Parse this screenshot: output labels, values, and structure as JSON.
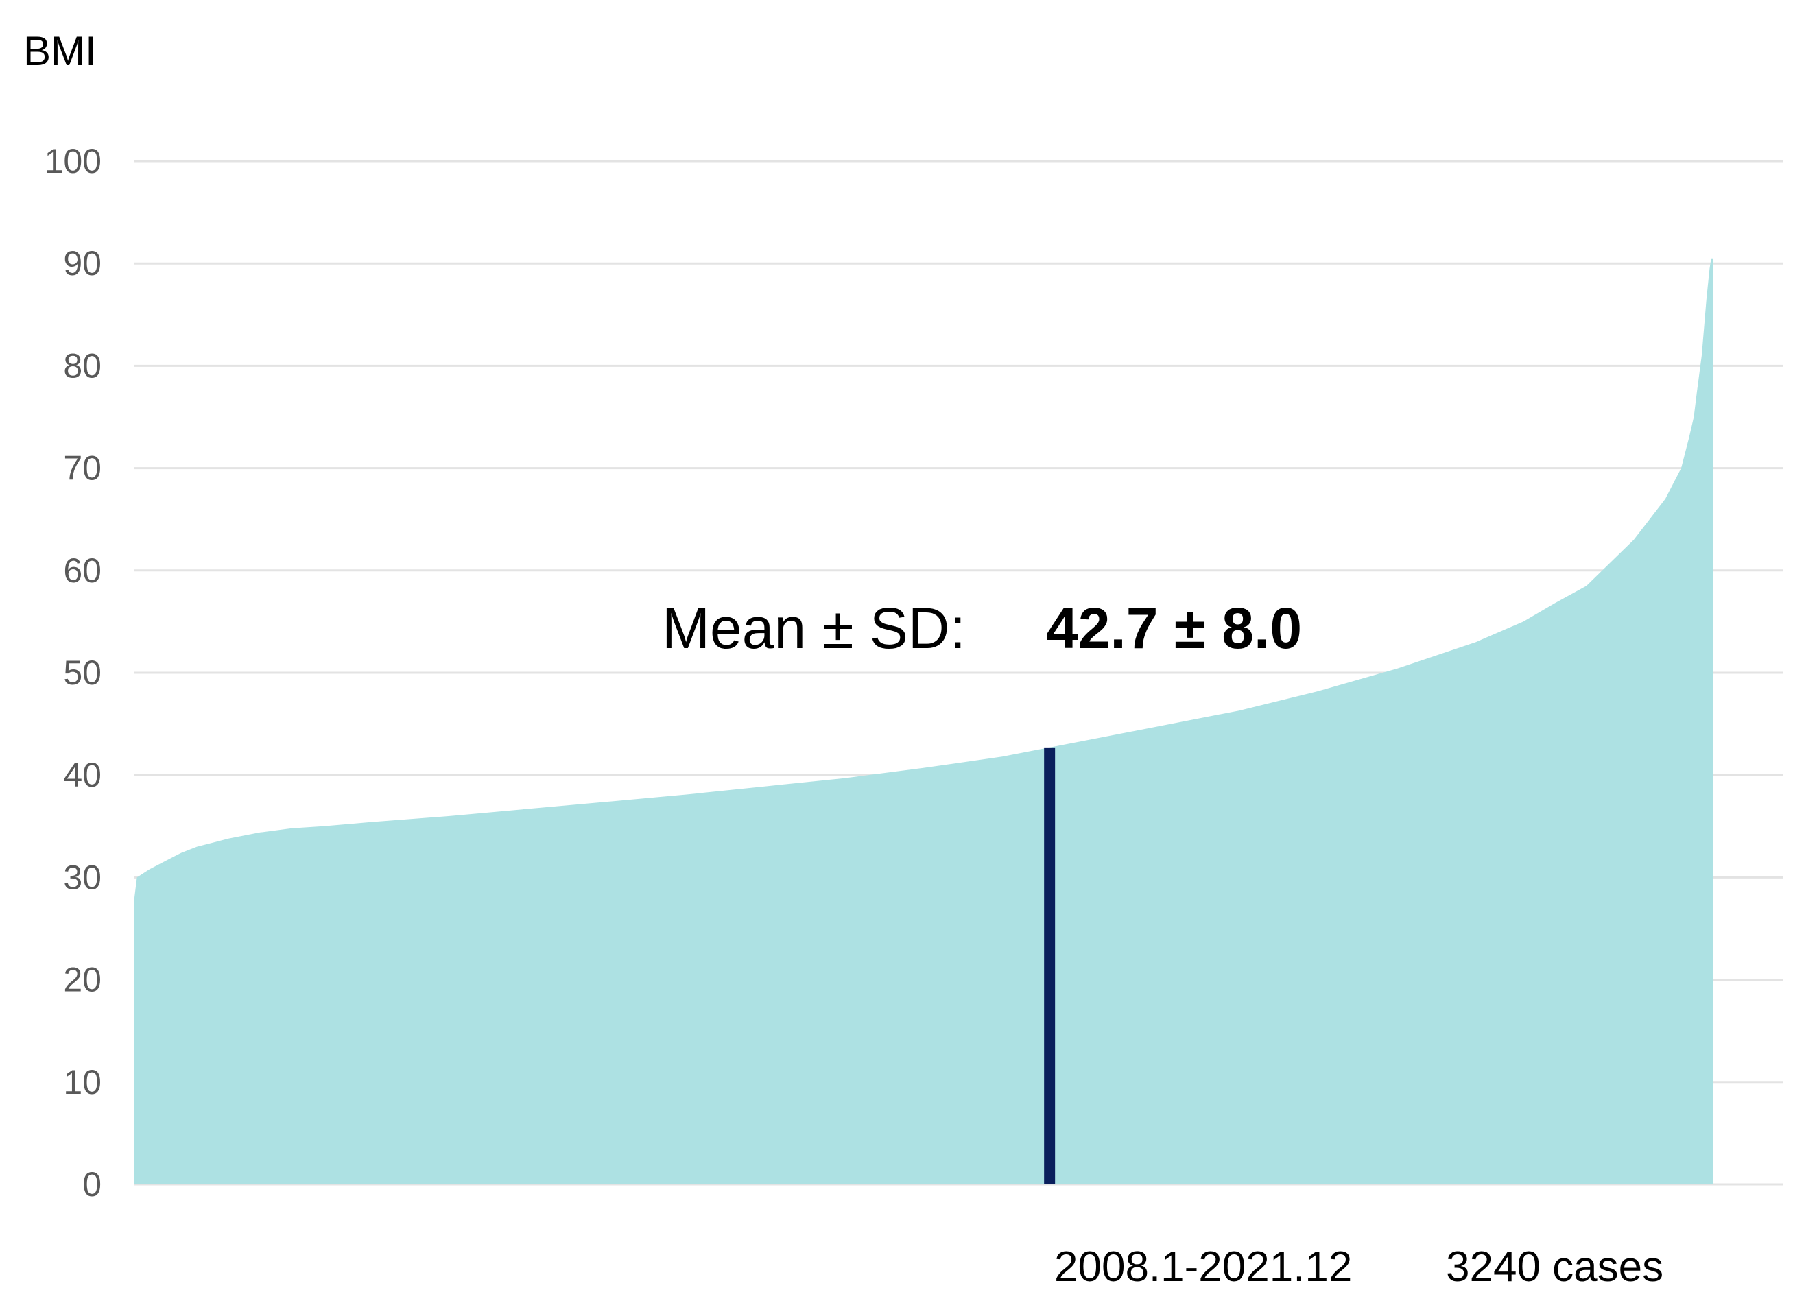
{
  "chart_data": {
    "type": "area",
    "ylabel": "BMI",
    "xlabel": "",
    "ylim": [
      0,
      100
    ],
    "yticks": [
      0,
      10,
      20,
      30,
      40,
      50,
      60,
      70,
      80,
      90,
      100
    ],
    "grid": true,
    "sort": "ascending",
    "x_percentile": [
      0,
      0.2,
      0.5,
      1,
      2,
      3,
      4,
      5,
      6,
      7,
      8,
      10,
      12,
      15,
      20,
      25,
      30,
      35,
      40,
      45,
      50,
      55,
      58,
      60,
      65,
      70,
      75,
      80,
      85,
      88,
      90,
      92,
      94,
      95,
      96,
      97,
      97.5,
      98,
      98.5,
      98.8,
      99,
      99.3,
      99.6,
      99.8,
      99.9,
      100
    ],
    "values": [
      27.5,
      30.0,
      30.3,
      30.8,
      31.6,
      32.4,
      33.0,
      33.4,
      33.8,
      34.1,
      34.4,
      34.8,
      35.0,
      35.4,
      36.0,
      36.7,
      37.4,
      38.1,
      38.9,
      39.7,
      40.7,
      41.8,
      42.7,
      43.3,
      44.8,
      46.3,
      48.2,
      50.4,
      53.0,
      55.0,
      56.8,
      58.5,
      61.5,
      63.0,
      65.0,
      67.0,
      68.5,
      70.0,
      73.0,
      75.0,
      77.5,
      81.0,
      86.5,
      89.5,
      90.5,
      90.5
    ],
    "fill_color": "#ade1e3",
    "marker": {
      "x_percentile": 58,
      "value": 42.7,
      "color": "#0a1f5c"
    },
    "annotation": {
      "label": "Mean ± SD:",
      "value": "42.7 ± 8.0"
    },
    "footer": {
      "period": "2008.1-2021.12",
      "cases": "3240 cases"
    }
  }
}
